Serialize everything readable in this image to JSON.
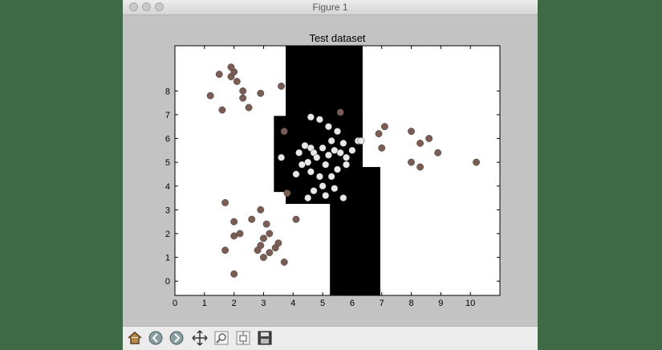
{
  "window": {
    "title": "Figure 1"
  },
  "toolbar": {
    "buttons": [
      {
        "icon": "home-icon"
      },
      {
        "icon": "back-icon"
      },
      {
        "icon": "forward-icon"
      },
      {
        "icon": "pan-icon"
      },
      {
        "icon": "zoom-icon"
      },
      {
        "icon": "subplots-icon"
      },
      {
        "icon": "save-icon"
      }
    ]
  },
  "chart_data": {
    "type": "scatter",
    "title": "Test dataset",
    "xlabel": "",
    "ylabel": "",
    "xlim": [
      0,
      11
    ],
    "ylim": [
      -0.6,
      9.9
    ],
    "xticks": [
      0,
      1,
      2,
      3,
      4,
      5,
      6,
      7,
      8,
      9,
      10
    ],
    "yticks": [
      0,
      1,
      2,
      3,
      4,
      5,
      6,
      7,
      8
    ],
    "grid": false,
    "decision_regions": [
      {
        "x0": 3.35,
        "x1": 6.35,
        "y0": 3.75,
        "y1": 6.95
      },
      {
        "x0": 3.75,
        "x1": 6.35,
        "y0": 3.25,
        "y1": 9.9
      },
      {
        "x0": 5.25,
        "x1": 6.35,
        "y0": -0.6,
        "y1": 9.9
      },
      {
        "x0": 5.25,
        "x1": 6.4,
        "y0": -0.6,
        "y1": 4.8
      },
      {
        "x0": 6.35,
        "x1": 6.95,
        "y0": -0.6,
        "y1": 4.8
      }
    ],
    "region_color": "#000000",
    "background_color": "#ffffff",
    "series": [
      {
        "color": "#7a5c53",
        "points": [
          [
            1.5,
            8.7
          ],
          [
            1.9,
            8.6
          ],
          [
            2.0,
            8.8
          ],
          [
            1.9,
            9.0
          ],
          [
            2.1,
            8.4
          ],
          [
            2.3,
            8.0
          ],
          [
            2.3,
            7.7
          ],
          [
            2.5,
            7.3
          ],
          [
            2.9,
            7.9
          ],
          [
            3.6,
            8.2
          ],
          [
            1.6,
            7.2
          ],
          [
            1.2,
            7.8
          ],
          [
            2.0,
            1.9
          ],
          [
            1.7,
            3.3
          ],
          [
            2.0,
            2.5
          ],
          [
            2.2,
            2.0
          ],
          [
            2.6,
            2.6
          ],
          [
            2.9,
            3.0
          ],
          [
            3.1,
            2.4
          ],
          [
            3.2,
            2.0
          ],
          [
            3.0,
            1.8
          ],
          [
            2.9,
            1.5
          ],
          [
            2.8,
            1.3
          ],
          [
            3.0,
            1.0
          ],
          [
            3.4,
            1.4
          ],
          [
            3.5,
            1.6
          ],
          [
            3.7,
            0.8
          ],
          [
            1.7,
            1.3
          ],
          [
            2.0,
            0.3
          ],
          [
            3.2,
            1.2
          ],
          [
            4.1,
            2.6
          ],
          [
            3.8,
            3.7
          ],
          [
            6.9,
            6.2
          ],
          [
            7.1,
            6.5
          ],
          [
            7.0,
            5.6
          ],
          [
            8.0,
            6.3
          ],
          [
            8.3,
            5.8
          ],
          [
            8.6,
            6.0
          ],
          [
            8.9,
            5.4
          ],
          [
            8.0,
            5.0
          ],
          [
            8.3,
            4.8
          ],
          [
            10.2,
            5.0
          ],
          [
            5.6,
            7.1
          ],
          [
            3.7,
            6.3
          ]
        ]
      },
      {
        "color": "#e8e8e8",
        "points": [
          [
            4.2,
            5.4
          ],
          [
            4.4,
            5.7
          ],
          [
            4.6,
            5.6
          ],
          [
            4.7,
            5.4
          ],
          [
            4.8,
            5.2
          ],
          [
            4.5,
            5.0
          ],
          [
            4.3,
            4.9
          ],
          [
            4.6,
            4.6
          ],
          [
            4.9,
            4.4
          ],
          [
            5.1,
            4.9
          ],
          [
            5.2,
            5.3
          ],
          [
            5.4,
            5.5
          ],
          [
            5.6,
            5.4
          ],
          [
            5.8,
            5.2
          ],
          [
            6.0,
            5.5
          ],
          [
            6.2,
            5.9
          ],
          [
            6.3,
            5.9
          ],
          [
            5.8,
            4.9
          ],
          [
            5.5,
            4.7
          ],
          [
            5.3,
            4.4
          ],
          [
            5.0,
            4.0
          ],
          [
            4.7,
            3.8
          ],
          [
            4.5,
            3.5
          ],
          [
            5.1,
            3.6
          ],
          [
            5.4,
            3.9
          ],
          [
            5.7,
            3.5
          ],
          [
            5.3,
            5.9
          ],
          [
            5.5,
            6.3
          ],
          [
            5.2,
            6.5
          ],
          [
            4.9,
            6.8
          ],
          [
            4.6,
            6.9
          ],
          [
            3.6,
            5.2
          ],
          [
            4.1,
            4.5
          ],
          [
            5.0,
            5.6
          ],
          [
            5.7,
            5.8
          ]
        ]
      }
    ]
  }
}
